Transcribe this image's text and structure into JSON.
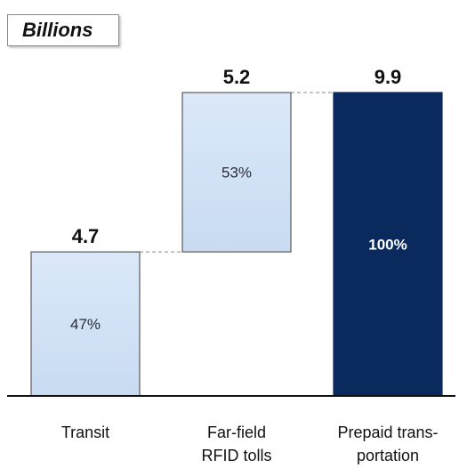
{
  "unit_label": "Billions",
  "chart_data": {
    "type": "bar",
    "subtype": "waterfall",
    "categories": [
      "Transit",
      "Far-field\nRFID tolls",
      "Prepaid trans-\nportation"
    ],
    "values": [
      4.7,
      5.2,
      9.9
    ],
    "value_labels": [
      "4.7",
      "5.2",
      "9.9"
    ],
    "percent_labels": [
      "47%",
      "53%",
      "100%"
    ],
    "bar_roles": [
      "increment",
      "increment",
      "total"
    ],
    "colors": {
      "increment_fill": "#d2e3f7",
      "increment_border": "#5a5a5a",
      "total_fill": "#0a2a5e",
      "total_text": "#ffffff",
      "increment_text": "#2b2b3a",
      "connector": "#888888",
      "axis": "#111111"
    },
    "ylim": [
      0,
      9.9
    ],
    "grid": false,
    "legend": "none",
    "title": "",
    "xlabel": "",
    "ylabel": ""
  }
}
